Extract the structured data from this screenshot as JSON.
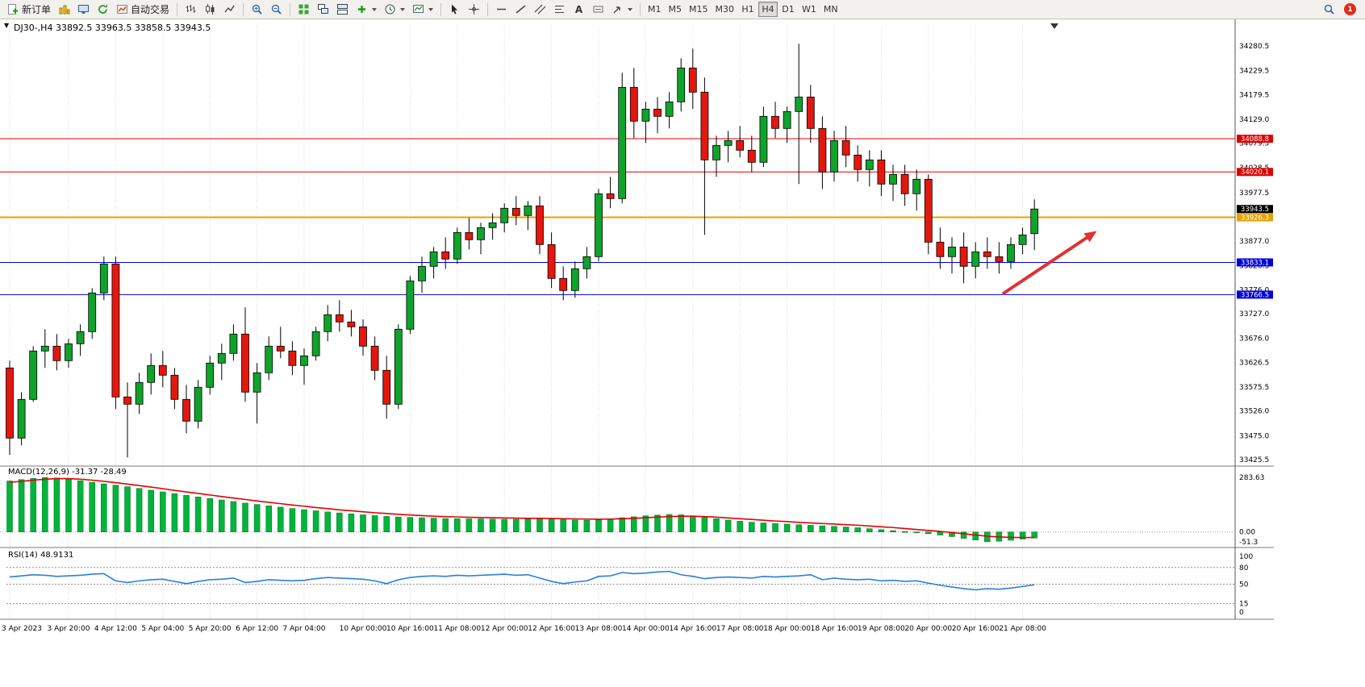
{
  "toolbar": {
    "new_order_label": "新订单",
    "auto_trading_label": "自动交易",
    "timeframes": [
      "M1",
      "M5",
      "M15",
      "M30",
      "H1",
      "H4",
      "D1",
      "W1",
      "MN"
    ],
    "active_timeframe": "H4",
    "notification_count": "1",
    "icons": {
      "text_tool": "A",
      "one_click_toggle": "▼"
    }
  },
  "chart": {
    "title": "DJ30-,H4 33892.5 33963.5 33858.5 33943.5"
  },
  "chart_data": {
    "type": "candlestick",
    "symbol": "DJ30-",
    "period": "H4",
    "ohlc_header": {
      "open": 33892.5,
      "high": 33963.5,
      "low": 33858.5,
      "close": 33943.5
    },
    "y_range": [
      33425.5,
      34280.5
    ],
    "y_ticks": [
      "34280.5",
      "34229.5",
      "34179.5",
      "34129.0",
      "34079.5",
      "34028.5",
      "33977.5",
      "33927.0",
      "33877.0",
      "33826.5",
      "33776.0",
      "33727.0",
      "33676.0",
      "33626.5",
      "33575.5",
      "33526.0",
      "33475.0",
      "33425.5"
    ],
    "x_labels": [
      "3 Apr 2023",
      "3 Apr 20:00",
      "4 Apr 12:00",
      "5 Apr 04:00",
      "5 Apr 20:00",
      "6 Apr 12:00",
      "7 Apr 04:00",
      "10 Apr 00:00",
      "10 Apr 16:00",
      "11 Apr 08:00",
      "12 Apr 00:00",
      "12 Apr 16:00",
      "13 Apr 08:00",
      "14 Apr 00:00",
      "14 Apr 16:00",
      "17 Apr 08:00",
      "18 Apr 00:00",
      "18 Apr 16:00",
      "19 Apr 08:00",
      "20 Apr 00:00",
      "20 Apr 16:00",
      "21 Apr 08:00"
    ],
    "x_label_indices": [
      0,
      5,
      9,
      13,
      17,
      21,
      25,
      30,
      34,
      38,
      42,
      46,
      50,
      54,
      58,
      62,
      66,
      70,
      74,
      78,
      82,
      86
    ],
    "colors": {
      "bull": "#0fa32b",
      "bear": "#e3170d",
      "outline": "#000000",
      "grid": "#d9d9d9",
      "axis_text": "#000000"
    },
    "candles": [
      [
        33615,
        33630,
        33435,
        33470
      ],
      [
        33470,
        33565,
        33455,
        33550
      ],
      [
        33550,
        33660,
        33545,
        33650
      ],
      [
        33650,
        33695,
        33615,
        33660
      ],
      [
        33660,
        33685,
        33610,
        33630
      ],
      [
        33630,
        33675,
        33615,
        33665
      ],
      [
        33665,
        33705,
        33640,
        33690
      ],
      [
        33690,
        33780,
        33675,
        33770
      ],
      [
        33770,
        33845,
        33755,
        33830
      ],
      [
        33830,
        33845,
        33530,
        33555
      ],
      [
        33555,
        33585,
        33430,
        33540
      ],
      [
        33540,
        33605,
        33520,
        33585
      ],
      [
        33585,
        33645,
        33560,
        33620
      ],
      [
        33620,
        33650,
        33575,
        33600
      ],
      [
        33600,
        33615,
        33530,
        33550
      ],
      [
        33550,
        33580,
        33480,
        33505
      ],
      [
        33505,
        33590,
        33490,
        33575
      ],
      [
        33575,
        33640,
        33560,
        33625
      ],
      [
        33625,
        33665,
        33590,
        33645
      ],
      [
        33645,
        33705,
        33630,
        33685
      ],
      [
        33685,
        33740,
        33545,
        33565
      ],
      [
        33565,
        33625,
        33500,
        33605
      ],
      [
        33605,
        33680,
        33590,
        33660
      ],
      [
        33660,
        33700,
        33635,
        33650
      ],
      [
        33650,
        33670,
        33600,
        33620
      ],
      [
        33620,
        33655,
        33580,
        33640
      ],
      [
        33640,
        33700,
        33630,
        33690
      ],
      [
        33690,
        33745,
        33670,
        33725
      ],
      [
        33725,
        33755,
        33690,
        33710
      ],
      [
        33710,
        33735,
        33680,
        33700
      ],
      [
        33700,
        33715,
        33640,
        33660
      ],
      [
        33660,
        33680,
        33590,
        33610
      ],
      [
        33610,
        33640,
        33510,
        33540
      ],
      [
        33540,
        33705,
        33530,
        33695
      ],
      [
        33695,
        33805,
        33685,
        33795
      ],
      [
        33795,
        33845,
        33770,
        33825
      ],
      [
        33825,
        33865,
        33800,
        33855
      ],
      [
        33855,
        33885,
        33820,
        33840
      ],
      [
        33840,
        33905,
        33830,
        33895
      ],
      [
        33895,
        33925,
        33860,
        33880
      ],
      [
        33880,
        33915,
        33850,
        33905
      ],
      [
        33905,
        33935,
        33880,
        33915
      ],
      [
        33915,
        33955,
        33895,
        33945
      ],
      [
        33945,
        33970,
        33910,
        33930
      ],
      [
        33930,
        33960,
        33900,
        33950
      ],
      [
        33950,
        33970,
        33850,
        33870
      ],
      [
        33870,
        33895,
        33780,
        33800
      ],
      [
        33800,
        33825,
        33755,
        33775
      ],
      [
        33775,
        33835,
        33760,
        33820
      ],
      [
        33820,
        33865,
        33800,
        33845
      ],
      [
        33845,
        33985,
        33835,
        33975
      ],
      [
        33975,
        34010,
        33945,
        33965
      ],
      [
        33965,
        34225,
        33955,
        34195
      ],
      [
        34195,
        34235,
        34090,
        34125
      ],
      [
        34125,
        34165,
        34080,
        34150
      ],
      [
        34150,
        34175,
        34100,
        34135
      ],
      [
        34135,
        34185,
        34110,
        34165
      ],
      [
        34165,
        34255,
        34145,
        34235
      ],
      [
        34235,
        34275,
        34150,
        34185
      ],
      [
        34185,
        34215,
        33890,
        34045
      ],
      [
        34045,
        34095,
        34010,
        34075
      ],
      [
        34075,
        34105,
        34040,
        34085
      ],
      [
        34085,
        34115,
        34050,
        34065
      ],
      [
        34065,
        34095,
        34020,
        34040
      ],
      [
        34040,
        34155,
        34030,
        34135
      ],
      [
        34135,
        34165,
        34090,
        34110
      ],
      [
        34110,
        34155,
        34080,
        34145
      ],
      [
        34145,
        34285,
        33995,
        34175
      ],
      [
        34175,
        34200,
        34080,
        34110
      ],
      [
        34110,
        34135,
        33985,
        34020
      ],
      [
        34020,
        34105,
        34000,
        34085
      ],
      [
        34085,
        34115,
        34030,
        34055
      ],
      [
        34055,
        34075,
        34000,
        34025
      ],
      [
        34025,
        34065,
        33990,
        34045
      ],
      [
        34045,
        34065,
        33970,
        33995
      ],
      [
        33995,
        34035,
        33960,
        34015
      ],
      [
        34015,
        34035,
        33950,
        33975
      ],
      [
        33975,
        34025,
        33940,
        34005
      ],
      [
        34005,
        34015,
        33850,
        33875
      ],
      [
        33875,
        33905,
        33820,
        33845
      ],
      [
        33845,
        33885,
        33810,
        33865
      ],
      [
        33865,
        33895,
        33790,
        33825
      ],
      [
        33825,
        33875,
        33800,
        33855
      ],
      [
        33855,
        33885,
        33820,
        33845
      ],
      [
        33845,
        33875,
        33810,
        33835
      ],
      [
        33835,
        33885,
        33820,
        33870
      ],
      [
        33870,
        33905,
        33850,
        33890
      ],
      [
        33892.5,
        33963.5,
        33858.5,
        33943.5
      ]
    ],
    "hlines": [
      {
        "price": 34088.8,
        "label": "34088.8",
        "color": "#dd0000",
        "width": 1
      },
      {
        "price": 34020.1,
        "label": "34020.1",
        "color": "#dd0000",
        "width": 1
      },
      {
        "price": 33926.3,
        "label": "33926.3",
        "color": "#e8a200",
        "width": 2
      },
      {
        "price": 33833.1,
        "label": "33833.1",
        "color": "#0000dd",
        "width": 1
      },
      {
        "price": 33766.5,
        "label": "33766.5",
        "color": "#0000dd",
        "width": 1
      }
    ],
    "current_price": {
      "price": 33943.5,
      "label": "33943.5",
      "bg": "#000000"
    },
    "annotation_arrow": {
      "from_index": 84.3,
      "from_price": 33768,
      "to_index": 92.3,
      "to_price": 33898,
      "color": "#e03131"
    },
    "macd": {
      "label": "MACD(12,26,9) -31.37 -28.49",
      "axis_labels": [
        "283.63",
        "0.00",
        "-51.3"
      ],
      "max": 283.63,
      "min": -51.3,
      "hist_color": "#00b43c",
      "signal_color": "#e60000",
      "histogram": [
        265,
        272,
        278,
        283,
        280,
        274,
        266,
        258,
        250,
        243,
        235,
        226,
        217,
        208,
        199,
        190,
        182,
        174,
        166,
        158,
        150,
        143,
        136,
        129,
        122,
        116,
        110,
        104,
        99,
        94,
        89,
        85,
        81,
        78,
        76,
        74,
        72,
        70,
        69,
        68,
        68,
        67,
        66,
        66,
        67,
        69,
        67,
        64,
        62,
        61,
        64,
        69,
        74,
        79,
        84,
        88,
        91,
        89,
        84,
        77,
        69,
        62,
        56,
        51,
        47,
        44,
        41,
        38,
        35,
        32,
        29,
        26,
        22,
        17,
        12,
        7,
        2,
        -3,
        -9,
        -16,
        -24,
        -33,
        -42,
        -51,
        -48,
        -43,
        -37,
        -31.4
      ],
      "signal": [
        258,
        263,
        269,
        274,
        277,
        277,
        274,
        269,
        263,
        256,
        249,
        241,
        233,
        225,
        216,
        208,
        200,
        192,
        184,
        176,
        169,
        161,
        154,
        147,
        140,
        134,
        127,
        121,
        115,
        110,
        105,
        100,
        96,
        92,
        88,
        85,
        82,
        80,
        78,
        76,
        75,
        74,
        73,
        72,
        71,
        71,
        70,
        69,
        68,
        67,
        66,
        67,
        69,
        71,
        74,
        77,
        80,
        82,
        82,
        80,
        77,
        73,
        69,
        65,
        61,
        57,
        54,
        50,
        47,
        44,
        41,
        38,
        35,
        31,
        27,
        23,
        18,
        13,
        8,
        3,
        -3,
        -9,
        -16,
        -22,
        -26,
        -28,
        -28.8,
        -28.5
      ]
    },
    "rsi": {
      "label": "RSI(14) 48.9131",
      "axis_labels": [
        "100",
        "80",
        "50",
        "15",
        "0"
      ],
      "levels": [
        80,
        50,
        15
      ],
      "color": "#2a7fde",
      "values": [
        63,
        65,
        67,
        66,
        64,
        65,
        66,
        68,
        69,
        56,
        53,
        56,
        58,
        59,
        55,
        51,
        55,
        58,
        59,
        61,
        53,
        55,
        58,
        57,
        56,
        57,
        60,
        62,
        61,
        60,
        59,
        56,
        51,
        58,
        62,
        64,
        65,
        64,
        66,
        65,
        66,
        67,
        68,
        66,
        67,
        61,
        55,
        51,
        54,
        56,
        64,
        65,
        71,
        69,
        70,
        72,
        73,
        67,
        64,
        60,
        62,
        63,
        62,
        61,
        64,
        63,
        64,
        65,
        67,
        58,
        61,
        59,
        58,
        59,
        56,
        57,
        55,
        56,
        52,
        48,
        45,
        42,
        40,
        42,
        41,
        43,
        46,
        48.9
      ]
    }
  }
}
